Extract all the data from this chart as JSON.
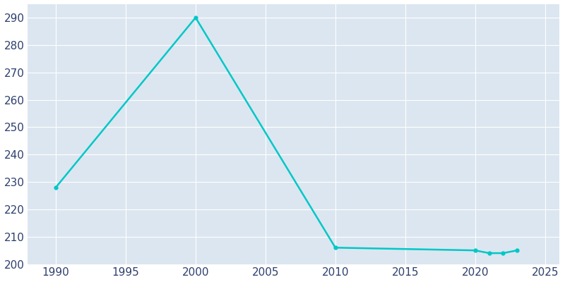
{
  "years": [
    1990,
    2000,
    2010,
    2020,
    2021,
    2022,
    2023
  ],
  "population": [
    228,
    290,
    206,
    205,
    204,
    204,
    205
  ],
  "line_color": "#00C8C8",
  "plot_bg_color": "#dce6f0",
  "fig_bg_color": "#ffffff",
  "grid_color": "#ffffff",
  "text_color": "#2e3f6e",
  "xlim": [
    1988,
    2026
  ],
  "ylim": [
    200,
    295
  ],
  "yticks": [
    200,
    210,
    220,
    230,
    240,
    250,
    260,
    270,
    280,
    290
  ],
  "xticks": [
    1990,
    1995,
    2000,
    2005,
    2010,
    2015,
    2020,
    2025
  ],
  "linewidth": 1.8,
  "marker": "o",
  "markersize": 3.5,
  "tick_labelsize": 11,
  "figsize": [
    8.0,
    4.0
  ],
  "dpi": 100
}
